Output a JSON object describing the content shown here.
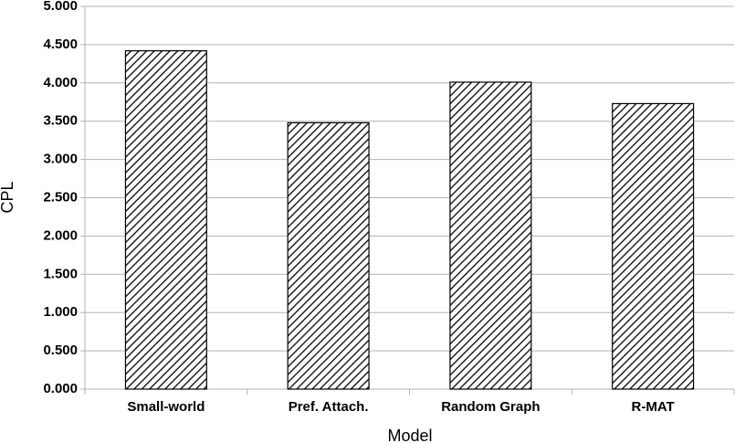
{
  "chart_data": {
    "type": "bar",
    "x_label": "Model",
    "y_label": "CPL",
    "categories": [
      "Small-world",
      "Pref. Attach.",
      "Random Graph",
      "R-MAT"
    ],
    "values": [
      4.42,
      3.48,
      4.01,
      3.73
    ],
    "ylim": [
      0,
      5
    ],
    "yticks": [
      {
        "value": 0,
        "label": "0.000"
      },
      {
        "value": 0.5,
        "label": "0.500"
      },
      {
        "value": 1,
        "label": "1.000"
      },
      {
        "value": 1.5,
        "label": "1.500"
      },
      {
        "value": 2,
        "label": "2.000"
      },
      {
        "value": 2.5,
        "label": "2.500"
      },
      {
        "value": 3,
        "label": "3.000"
      },
      {
        "value": 3.5,
        "label": "3.500"
      },
      {
        "value": 4,
        "label": "4.000"
      },
      {
        "value": 4.5,
        "label": "4.500"
      },
      {
        "value": 5,
        "label": "5.000"
      }
    ],
    "grid": true
  }
}
